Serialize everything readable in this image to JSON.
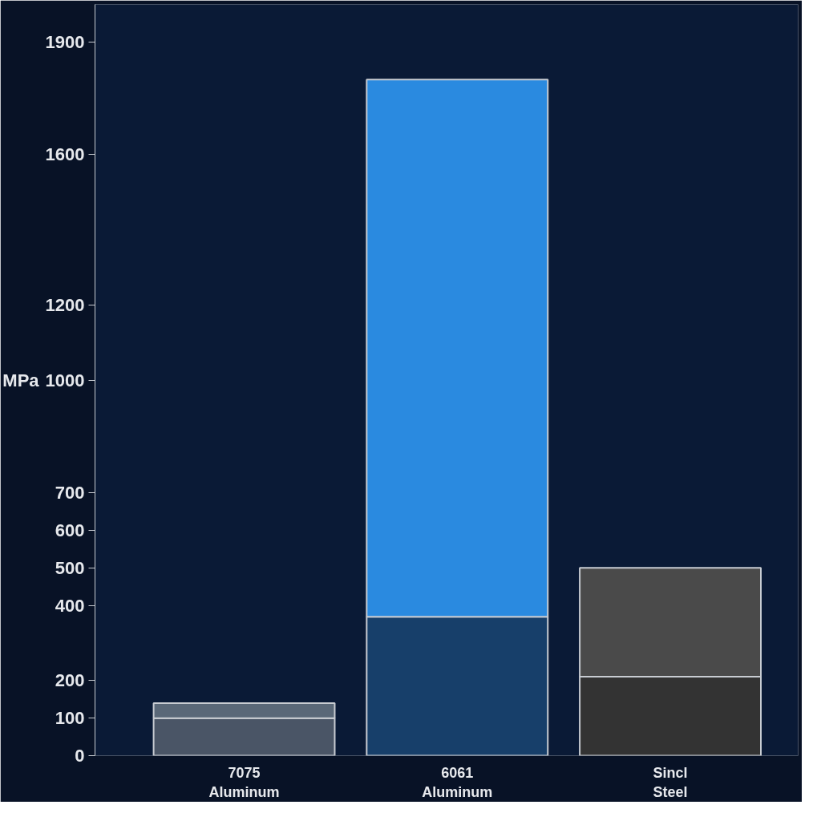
{
  "chart_data": {
    "type": "bar",
    "stacked": true,
    "ylabel": "MPa",
    "categories": [
      "7075\nAluminum",
      "6061\nAluminum",
      "Sincl\nSteel"
    ],
    "series": [
      {
        "colors": [
          "#4a5566",
          "#173f6a",
          "#333333"
        ],
        "values": [
          100,
          370,
          210
        ]
      },
      {
        "colors": [
          "#5a6878",
          "#2a8ae0",
          "#4a4a4a"
        ],
        "values": [
          40,
          1430,
          290
        ]
      }
    ],
    "ylim": [
      0,
      2000
    ],
    "yticks": [
      0,
      100,
      200,
      400,
      500,
      600,
      700,
      1000,
      1200,
      1600,
      1900
    ],
    "grid": false
  }
}
